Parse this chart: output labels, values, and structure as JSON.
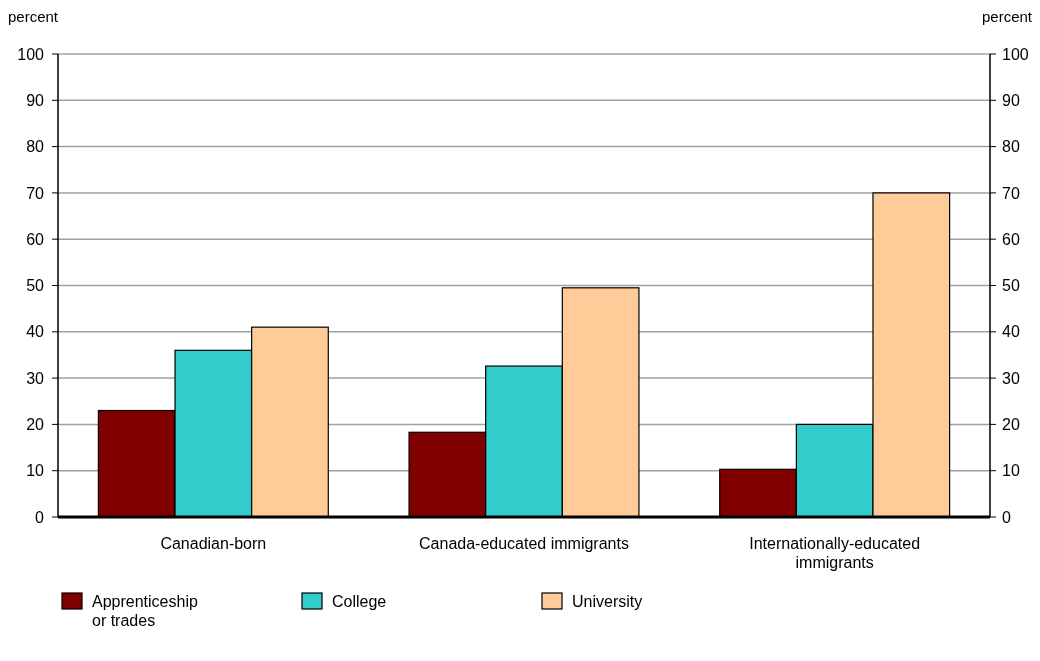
{
  "chart_data": {
    "type": "bar",
    "ylabel": "percent",
    "y2label": "percent",
    "categories": [
      "Canadian-born",
      "Canada-educated immigrants",
      "Internationally-educated immigrants"
    ],
    "series": [
      {
        "name": "Apprenticeship or trades",
        "color": "#800000",
        "values": [
          23,
          18.3,
          10.3
        ]
      },
      {
        "name": "College",
        "color": "#33cccc",
        "values": [
          36,
          32.6,
          20
        ]
      },
      {
        "name": "University",
        "color": "#ffcc99",
        "values": [
          41,
          49.5,
          70
        ]
      }
    ],
    "ylim": [
      0,
      100
    ],
    "yticks": [
      0,
      10,
      20,
      30,
      40,
      50,
      60,
      70,
      80,
      90,
      100
    ],
    "y2lim": [
      0,
      100
    ],
    "y2ticks": [
      0,
      10,
      20,
      30,
      40,
      50,
      60,
      70,
      80,
      90,
      100
    ],
    "grid": "y",
    "legend": "bottom left"
  }
}
